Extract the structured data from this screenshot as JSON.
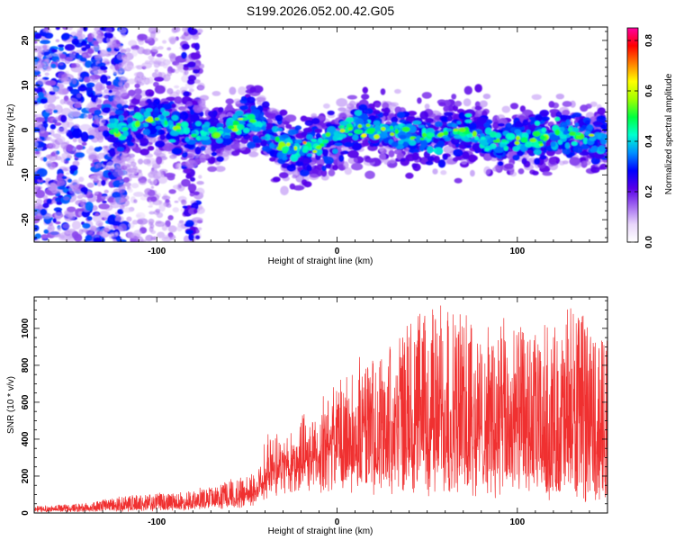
{
  "title": "S199.2026.052.00.42.G05",
  "chart_data": [
    {
      "type": "heatmap",
      "name": "spectrogram",
      "xlabel": "Height of straight line (km)",
      "ylabel": "Frequency (Hz)",
      "xlim": [
        -168,
        150
      ],
      "ylim": [
        -25,
        23
      ],
      "xticks": [
        -100,
        0,
        100
      ],
      "xtick_labels": [
        "-100",
        "0",
        "100"
      ],
      "yticks": [
        20,
        10,
        0,
        -10,
        -20
      ],
      "ytick_labels": [
        "20",
        "10",
        "0",
        "-10",
        "-20"
      ],
      "colorbar": {
        "label": "Normalized spectral amplitude",
        "range": [
          0,
          0.85
        ],
        "ticks": [
          0.0,
          0.2,
          0.4,
          0.6,
          0.8
        ],
        "tick_labels": [
          "0.0",
          "0.2",
          "0.4",
          "0.6",
          "0.8"
        ],
        "colormap": [
          "#ffffff",
          "#e8d6fb",
          "#a36af0",
          "#5800e8",
          "#0000ff",
          "#0090ff",
          "#00ffd0",
          "#00ff40",
          "#a0ff00",
          "#ffff00",
          "#ff8000",
          "#ff0000",
          "#ff00a0"
        ]
      },
      "ridge": {
        "description_points_x": [
          -120,
          -100,
          -80,
          -60,
          -45,
          -30,
          -20,
          -10,
          0,
          20,
          40,
          60,
          80,
          100,
          120,
          148
        ],
        "center_frequency_hz": [
          1,
          0.5,
          0,
          0.5,
          1,
          -4,
          -3,
          -2,
          -1,
          -1,
          0,
          -1,
          -2,
          -1,
          -2,
          -2
        ]
      }
    },
    {
      "type": "line",
      "name": "snr",
      "xlabel": "Height of straight line (km)",
      "ylabel": "SNR (10 * v/v)",
      "color": "#f03030",
      "xlim": [
        -168,
        150
      ],
      "ylim": [
        0,
        1170
      ],
      "xticks": [
        -100,
        0,
        100
      ],
      "xtick_labels": [
        "-100",
        "0",
        "100"
      ],
      "yticks": [
        0,
        200,
        400,
        600,
        800,
        1000
      ],
      "ytick_labels": [
        "0",
        "200",
        "400",
        "600",
        "800",
        "1000"
      ],
      "envelope": {
        "x": [
          -168,
          -140,
          -120,
          -100,
          -80,
          -60,
          -45,
          -40,
          -30,
          -20,
          -10,
          0,
          10,
          20,
          30,
          40,
          50,
          60,
          70,
          80,
          90,
          100,
          110,
          120,
          130,
          140,
          150
        ],
        "baseline": [
          10,
          12,
          15,
          22,
          30,
          45,
          80,
          150,
          200,
          220,
          240,
          260,
          250,
          240,
          230,
          220,
          220,
          230,
          210,
          200,
          190,
          180,
          170,
          160,
          150,
          140,
          130
        ],
        "peak": [
          40,
          55,
          90,
          110,
          120,
          180,
          230,
          400,
          430,
          500,
          560,
          720,
          800,
          850,
          950,
          1060,
          1100,
          1170,
          1090,
          1000,
          1030,
          1050,
          1000,
          1020,
          1130,
          1040,
          1010
        ]
      }
    }
  ]
}
